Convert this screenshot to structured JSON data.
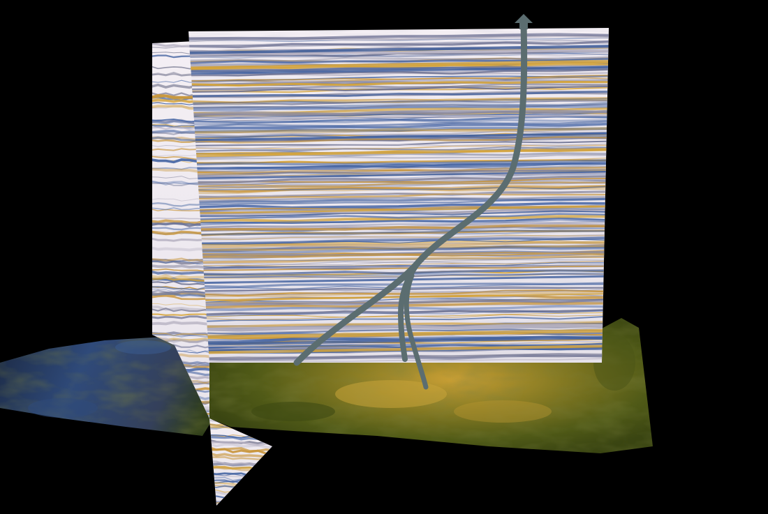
{
  "view": {
    "background": "#000000"
  },
  "scene": {
    "type": "3d-seismic-volume-visualization",
    "objects": [
      {
        "id": "horizon-surface",
        "kind": "elevation-surface",
        "colors": [
          "#4a5316",
          "#6b6a1e",
          "#c9a43a",
          "#3b5a8c"
        ]
      },
      {
        "id": "seismic-inline-section",
        "kind": "vertical-amplitude-section",
        "colors": [
          "#f2eef2",
          "#3f5f9e",
          "#d6a53a",
          "#8a8aa0"
        ]
      },
      {
        "id": "seismic-crossline-section",
        "kind": "vertical-amplitude-section",
        "colors": [
          "#f2eef2",
          "#3f5f9e",
          "#d6a53a",
          "#8a8aa0"
        ]
      },
      {
        "id": "well-trajectories",
        "kind": "well-paths",
        "count": 3,
        "color": "#5b6d70"
      }
    ]
  }
}
